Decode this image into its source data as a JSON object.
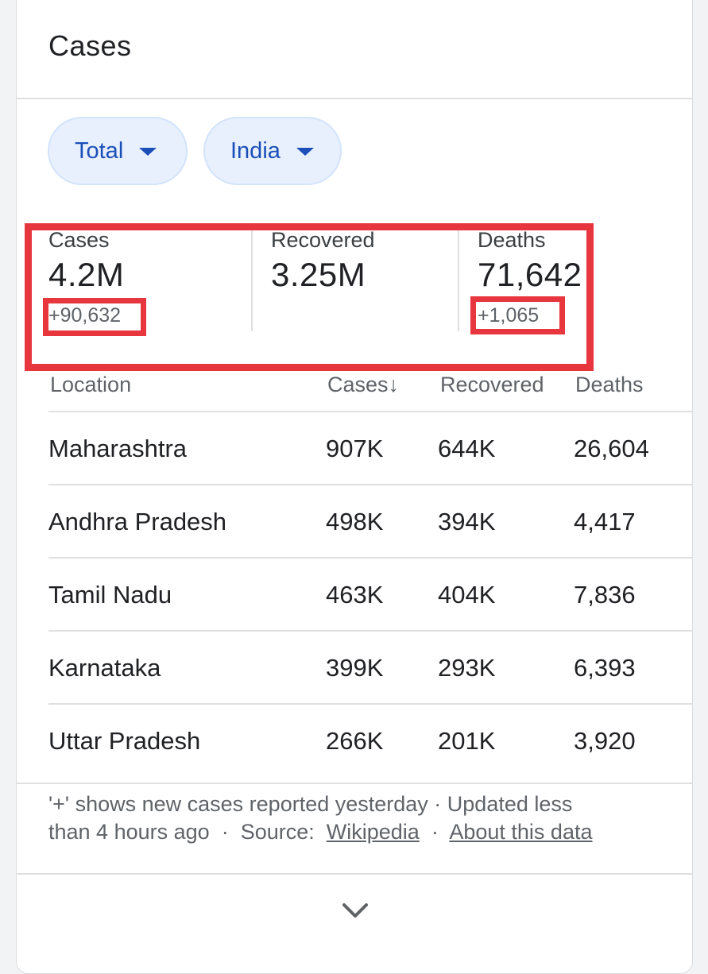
{
  "header": {
    "title": "Cases"
  },
  "filters": {
    "metric": "Total",
    "region": "India"
  },
  "summary": {
    "cases": {
      "label": "Cases",
      "value": "4.2M",
      "delta": "+90,632"
    },
    "recovered": {
      "label": "Recovered",
      "value": "3.25M"
    },
    "deaths": {
      "label": "Deaths",
      "value": "71,642",
      "delta": "+1,065"
    }
  },
  "table": {
    "columns": {
      "location": "Location",
      "cases": "Cases",
      "recovered": "Recovered",
      "deaths": "Deaths"
    },
    "sort_indicator": "↓",
    "rows": [
      {
        "location": "Maharashtra",
        "cases": "907K",
        "recovered": "644K",
        "deaths": "26,604"
      },
      {
        "location": "Andhra Pradesh",
        "cases": "498K",
        "recovered": "394K",
        "deaths": "4,417"
      },
      {
        "location": "Tamil Nadu",
        "cases": "463K",
        "recovered": "404K",
        "deaths": "7,836"
      },
      {
        "location": "Karnataka",
        "cases": "399K",
        "recovered": "293K",
        "deaths": "6,393"
      },
      {
        "location": "Uttar Pradesh",
        "cases": "266K",
        "recovered": "201K",
        "deaths": "3,920"
      }
    ]
  },
  "footer": {
    "note_line1": "'+' shows new cases reported yesterday · Updated less",
    "note_line2": "than 4 hours ago",
    "sep": "·",
    "source_label": "Source:",
    "source_link": "Wikipedia",
    "about_link": "About this data"
  },
  "colors": {
    "highlight": "#e8363f",
    "chip_bg": "#e8f0fe",
    "chip_text": "#1a4fb8"
  },
  "icons": {
    "dropdown": "caret-down-icon",
    "expand": "chevron-down-icon"
  }
}
